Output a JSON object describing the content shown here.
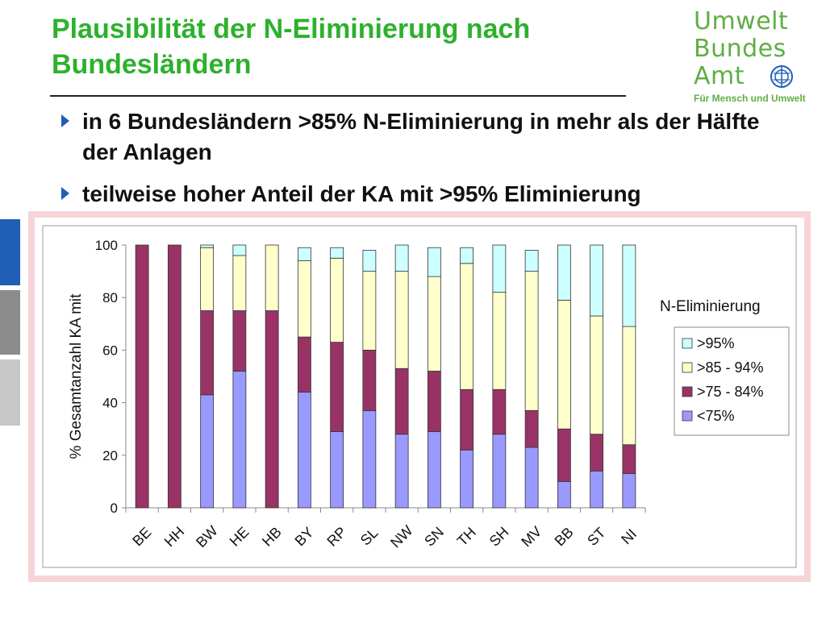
{
  "slide": {
    "title": "Plausibilität der N-Eliminierung nach Bundesländern",
    "bullets": [
      "in 6 Bundesländern >85% N-Eliminierung in mehr als der Hälfte der Anlagen",
      "teilweise hoher Anteil der KA mit >95% Eliminierung"
    ],
    "colors": {
      "title": "#2db12d",
      "bullet_marker": "#1f5fb5",
      "frame": "#f6d4d8",
      "side_tabs": [
        "#1f5fb5",
        "#8c8c8c",
        "#c8c8c8"
      ]
    }
  },
  "logo": {
    "lines": [
      "Umwelt",
      "Bundes",
      "Amt"
    ],
    "tagline": "Für Mensch und Umwelt",
    "color": "#5fae45",
    "emblem_icon": "globe-emblem-icon"
  },
  "chart_data": {
    "type": "bar",
    "stacked": true,
    "categories": [
      "BE",
      "HH",
      "BW",
      "HE",
      "HB",
      "BY",
      "RP",
      "SL",
      "NW",
      "SN",
      "TH",
      "SH",
      "MV",
      "BB",
      "ST",
      "NI"
    ],
    "series": [
      {
        "name": "<75%",
        "color": "#9999ff",
        "values": [
          0,
          0,
          43,
          52,
          0,
          44,
          29,
          37,
          28,
          29,
          22,
          28,
          23,
          10,
          14,
          13
        ]
      },
      {
        "name": ">75 - 84%",
        "color": "#993366",
        "values": [
          100,
          100,
          32,
          23,
          75,
          21,
          34,
          23,
          25,
          23,
          23,
          17,
          14,
          20,
          14,
          11
        ]
      },
      {
        "name": ">85 - 94%",
        "color": "#ffffcc",
        "values": [
          0,
          0,
          24,
          21,
          25,
          29,
          32,
          30,
          37,
          36,
          48,
          37,
          53,
          49,
          45,
          45
        ]
      },
      {
        "name": ">95%",
        "color": "#ccffff",
        "values": [
          0,
          0,
          1,
          4,
          0,
          5,
          4,
          8,
          10,
          11,
          6,
          18,
          8,
          21,
          27,
          31
        ]
      }
    ],
    "ylabel": "% Gesamtanzahl KA mit",
    "xlabel": "",
    "ylim": [
      0,
      100
    ],
    "yticks": [
      0,
      20,
      40,
      60,
      80,
      100
    ],
    "legend_title": "N-Eliminierung",
    "legend_position": "right",
    "grid": false
  }
}
